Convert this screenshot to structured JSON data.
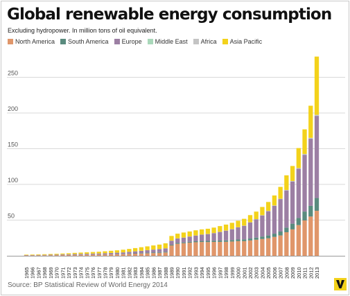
{
  "header": {
    "title": "Global renewable energy consumption",
    "subtitle": "Excluding hydropower. In million tons of oil equivalent."
  },
  "footer": {
    "source": "Source: BP Statistical Review of World Energy 2014",
    "logo": "V"
  },
  "colors": {
    "north_america": "#e0966a",
    "south_america": "#5a8b7e",
    "europe": "#9c7fa3",
    "middle_east": "#a9d8ba",
    "africa": "#c4c4c4",
    "asia_pacific": "#f3d21b",
    "grid": "#d9d9d9",
    "axis_text": "#555555"
  },
  "chart_data": {
    "type": "bar",
    "stacked": true,
    "title": "Global renewable energy consumption",
    "subtitle": "Excluding hydropower. In million tons of oil equivalent.",
    "xlabel": "",
    "ylabel": "",
    "ylim": [
      0,
      280
    ],
    "yticks": [
      50,
      100,
      150,
      200,
      250
    ],
    "grid": true,
    "legend_position": "top",
    "categories": [
      "1965",
      "1966",
      "1967",
      "1968",
      "1969",
      "1970",
      "1971",
      "1972",
      "1973",
      "1974",
      "1975",
      "1976",
      "1977",
      "1978",
      "1979",
      "1980",
      "1981",
      "1982",
      "1983",
      "1984",
      "1985",
      "1986",
      "1987",
      "1988",
      "1989",
      "1990",
      "1991",
      "1992",
      "1993",
      "1994",
      "1995",
      "1996",
      "1997",
      "1998",
      "1999",
      "2000",
      "2001",
      "2002",
      "2003",
      "2004",
      "2005",
      "2006",
      "2007",
      "2008",
      "2009",
      "2010",
      "2011",
      "2012",
      "2013"
    ],
    "series": [
      {
        "name": "North America",
        "color": "#e0966a",
        "values": [
          0.5,
          0.6,
          0.6,
          0.7,
          0.8,
          0.9,
          1.0,
          1.1,
          1.2,
          1.3,
          1.4,
          1.5,
          1.6,
          1.7,
          1.9,
          2.0,
          2.2,
          2.6,
          2.9,
          3.2,
          3.5,
          3.8,
          4.1,
          4.6,
          14.5,
          16.8,
          17.6,
          18.4,
          19.0,
          19.3,
          19.2,
          19.4,
          19.5,
          19.6,
          20.0,
          20.5,
          20.5,
          21.5,
          22.5,
          23.5,
          24.5,
          26.5,
          28.5,
          33.0,
          37.0,
          43.0,
          49.5,
          55.0,
          63.0
        ]
      },
      {
        "name": "South America",
        "color": "#5a8b7e",
        "values": [
          0.1,
          0.1,
          0.1,
          0.1,
          0.1,
          0.1,
          0.1,
          0.1,
          0.2,
          0.2,
          0.2,
          0.2,
          0.2,
          0.2,
          0.2,
          0.3,
          0.3,
          0.4,
          0.5,
          0.6,
          0.8,
          0.9,
          1.0,
          1.0,
          1.1,
          1.2,
          1.2,
          1.3,
          1.4,
          1.5,
          1.7,
          1.8,
          1.9,
          2.0,
          2.1,
          2.3,
          2.5,
          2.7,
          3.0,
          3.5,
          4.0,
          4.5,
          5.5,
          6.5,
          8.0,
          10.0,
          12.5,
          15.0,
          18.0
        ]
      },
      {
        "name": "Europe",
        "color": "#9c7fa3",
        "values": [
          0.4,
          0.4,
          0.5,
          0.5,
          0.6,
          0.7,
          0.8,
          0.9,
          1.0,
          1.1,
          1.2,
          1.3,
          1.4,
          1.6,
          1.8,
          2.0,
          2.2,
          2.5,
          2.8,
          3.1,
          3.5,
          3.9,
          4.3,
          4.8,
          5.5,
          6.2,
          6.6,
          7.2,
          7.9,
          8.8,
          9.5,
          10.5,
          12.0,
          13.5,
          15.0,
          17.0,
          19.0,
          22.5,
          25.5,
          29.5,
          34.0,
          39.0,
          45.5,
          52.0,
          59.0,
          69.0,
          79.5,
          94.0,
          115.0
        ]
      },
      {
        "name": "Middle East",
        "color": "#a9d8ba",
        "values": [
          0,
          0,
          0,
          0,
          0,
          0,
          0,
          0,
          0,
          0,
          0,
          0,
          0,
          0,
          0,
          0,
          0,
          0,
          0,
          0,
          0,
          0,
          0,
          0,
          0,
          0,
          0,
          0,
          0,
          0,
          0,
          0,
          0,
          0,
          0,
          0,
          0,
          0,
          0,
          0,
          0,
          0,
          0,
          0.1,
          0.1,
          0.1,
          0.2,
          0.2,
          0.3
        ]
      },
      {
        "name": "Africa",
        "color": "#c4c4c4",
        "values": [
          0,
          0,
          0,
          0,
          0,
          0,
          0.1,
          0.1,
          0.1,
          0.1,
          0.1,
          0.1,
          0.1,
          0.1,
          0.1,
          0.1,
          0.1,
          0.1,
          0.1,
          0.1,
          0.1,
          0.1,
          0.1,
          0.1,
          0.2,
          0.2,
          0.2,
          0.2,
          0.2,
          0.2,
          0.2,
          0.2,
          0.2,
          0.3,
          0.3,
          0.3,
          0.3,
          0.3,
          0.4,
          0.4,
          0.4,
          0.5,
          0.5,
          0.6,
          0.7,
          0.8,
          0.9,
          1.0,
          1.2
        ]
      },
      {
        "name": "Asia Pacific",
        "color": "#f3d21b",
        "values": [
          0.6,
          0.7,
          0.8,
          0.9,
          1.0,
          1.1,
          1.2,
          1.4,
          1.6,
          1.8,
          2.0,
          2.2,
          2.4,
          2.7,
          3.0,
          3.3,
          3.7,
          4.0,
          4.5,
          5.0,
          5.3,
          5.8,
          6.2,
          7.0,
          6.5,
          6.6,
          7.0,
          7.0,
          7.2,
          7.2,
          7.3,
          7.6,
          8.0,
          8.3,
          8.8,
          9.0,
          9.5,
          10.0,
          10.5,
          11.5,
          12.5,
          14.0,
          16.5,
          20.5,
          21.0,
          28.0,
          34.5,
          45.0,
          81.5
        ]
      }
    ]
  }
}
